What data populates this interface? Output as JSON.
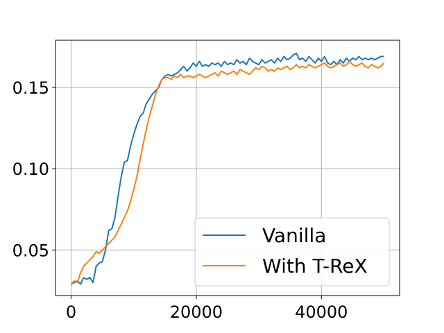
{
  "chart_data": {
    "type": "line",
    "title": "",
    "xlabel": "",
    "ylabel": "",
    "xlim": [
      -2500,
      52500
    ],
    "ylim": [
      0.022,
      0.179
    ],
    "xticks": [
      0,
      20000,
      40000
    ],
    "xtick_labels": [
      "0",
      "20000",
      "40000"
    ],
    "yticks": [
      0.05,
      0.1,
      0.15
    ],
    "ytick_labels": [
      "0.05",
      "0.10",
      "0.15"
    ],
    "grid": true,
    "legend": {
      "placement": "lower-right",
      "entries": [
        "Vanilla",
        "With T-ReX"
      ]
    },
    "series": [
      {
        "name": "Vanilla",
        "color": "#1f77b4",
        "x": [
          0,
          500,
          1000,
          1500,
          2000,
          2500,
          3000,
          3500,
          4000,
          4500,
          5000,
          5500,
          6000,
          6500,
          7000,
          7500,
          8000,
          8500,
          9000,
          9500,
          10000,
          10500,
          11000,
          11500,
          12000,
          12500,
          13000,
          13500,
          14000,
          14500,
          15000,
          15500,
          16000,
          16500,
          17000,
          17500,
          18000,
          18500,
          19000,
          19500,
          20000,
          20500,
          21000,
          21500,
          22000,
          22500,
          23000,
          23500,
          24000,
          24500,
          25000,
          25500,
          26000,
          26500,
          27000,
          27500,
          28000,
          28500,
          29000,
          29500,
          30000,
          30500,
          31000,
          31500,
          32000,
          32500,
          33000,
          33500,
          34000,
          34500,
          35000,
          35500,
          36000,
          36500,
          37000,
          37500,
          38000,
          38500,
          39000,
          39500,
          40000,
          40500,
          41000,
          41500,
          42000,
          42500,
          43000,
          43500,
          44000,
          44500,
          45000,
          45500,
          46000,
          46500,
          47000,
          47500,
          48000,
          48500,
          49000,
          49500,
          50000
        ],
        "y": [
          0.029,
          0.03,
          0.031,
          0.029,
          0.033,
          0.032,
          0.033,
          0.03,
          0.04,
          0.042,
          0.043,
          0.05,
          0.062,
          0.063,
          0.07,
          0.083,
          0.095,
          0.104,
          0.105,
          0.114,
          0.121,
          0.127,
          0.132,
          0.134,
          0.14,
          0.143,
          0.146,
          0.148,
          0.15,
          0.155,
          0.157,
          0.158,
          0.157,
          0.158,
          0.159,
          0.161,
          0.163,
          0.16,
          0.162,
          0.165,
          0.163,
          0.166,
          0.163,
          0.164,
          0.163,
          0.165,
          0.164,
          0.165,
          0.163,
          0.166,
          0.164,
          0.165,
          0.164,
          0.167,
          0.165,
          0.166,
          0.164,
          0.168,
          0.166,
          0.165,
          0.164,
          0.167,
          0.165,
          0.166,
          0.167,
          0.165,
          0.168,
          0.166,
          0.169,
          0.167,
          0.168,
          0.17,
          0.171,
          0.167,
          0.168,
          0.166,
          0.169,
          0.167,
          0.165,
          0.168,
          0.166,
          0.169,
          0.165,
          0.164,
          0.166,
          0.164,
          0.167,
          0.165,
          0.168,
          0.166,
          0.168,
          0.167,
          0.169,
          0.167,
          0.168,
          0.167,
          0.168,
          0.167,
          0.168,
          0.169,
          0.169
        ]
      },
      {
        "name": "With T-ReX",
        "color": "#ff7f0e",
        "x": [
          0,
          500,
          1000,
          1500,
          2000,
          2500,
          3000,
          3500,
          4000,
          4500,
          5000,
          5500,
          6000,
          6500,
          7000,
          7500,
          8000,
          8500,
          9000,
          9500,
          10000,
          10500,
          11000,
          11500,
          12000,
          12500,
          13000,
          13500,
          14000,
          14500,
          15000,
          15500,
          16000,
          16500,
          17000,
          17500,
          18000,
          18500,
          19000,
          19500,
          20000,
          20500,
          21000,
          21500,
          22000,
          22500,
          23000,
          23500,
          24000,
          24500,
          25000,
          25500,
          26000,
          26500,
          27000,
          27500,
          28000,
          28500,
          29000,
          29500,
          30000,
          30500,
          31000,
          31500,
          32000,
          32500,
          33000,
          33500,
          34000,
          34500,
          35000,
          35500,
          36000,
          36500,
          37000,
          37500,
          38000,
          38500,
          39000,
          39500,
          40000,
          40500,
          41000,
          41500,
          42000,
          42500,
          43000,
          43500,
          44000,
          44500,
          45000,
          45500,
          46000,
          46500,
          47000,
          47500,
          48000,
          48500,
          49000,
          49500,
          50000
        ],
        "y": [
          0.029,
          0.031,
          0.03,
          0.036,
          0.04,
          0.042,
          0.044,
          0.046,
          0.049,
          0.048,
          0.05,
          0.052,
          0.054,
          0.056,
          0.058,
          0.062,
          0.066,
          0.07,
          0.074,
          0.08,
          0.087,
          0.095,
          0.105,
          0.115,
          0.124,
          0.132,
          0.139,
          0.146,
          0.151,
          0.155,
          0.156,
          0.156,
          0.155,
          0.157,
          0.156,
          0.158,
          0.156,
          0.157,
          0.157,
          0.156,
          0.157,
          0.158,
          0.157,
          0.156,
          0.157,
          0.158,
          0.159,
          0.157,
          0.16,
          0.159,
          0.158,
          0.159,
          0.16,
          0.158,
          0.161,
          0.16,
          0.159,
          0.158,
          0.16,
          0.162,
          0.161,
          0.163,
          0.162,
          0.16,
          0.161,
          0.16,
          0.162,
          0.161,
          0.162,
          0.163,
          0.161,
          0.162,
          0.164,
          0.162,
          0.163,
          0.162,
          0.164,
          0.163,
          0.162,
          0.163,
          0.164,
          0.165,
          0.163,
          0.162,
          0.163,
          0.164,
          0.165,
          0.163,
          0.164,
          0.166,
          0.164,
          0.163,
          0.164,
          0.165,
          0.163,
          0.162,
          0.164,
          0.163,
          0.162,
          0.163,
          0.165
        ]
      }
    ]
  }
}
